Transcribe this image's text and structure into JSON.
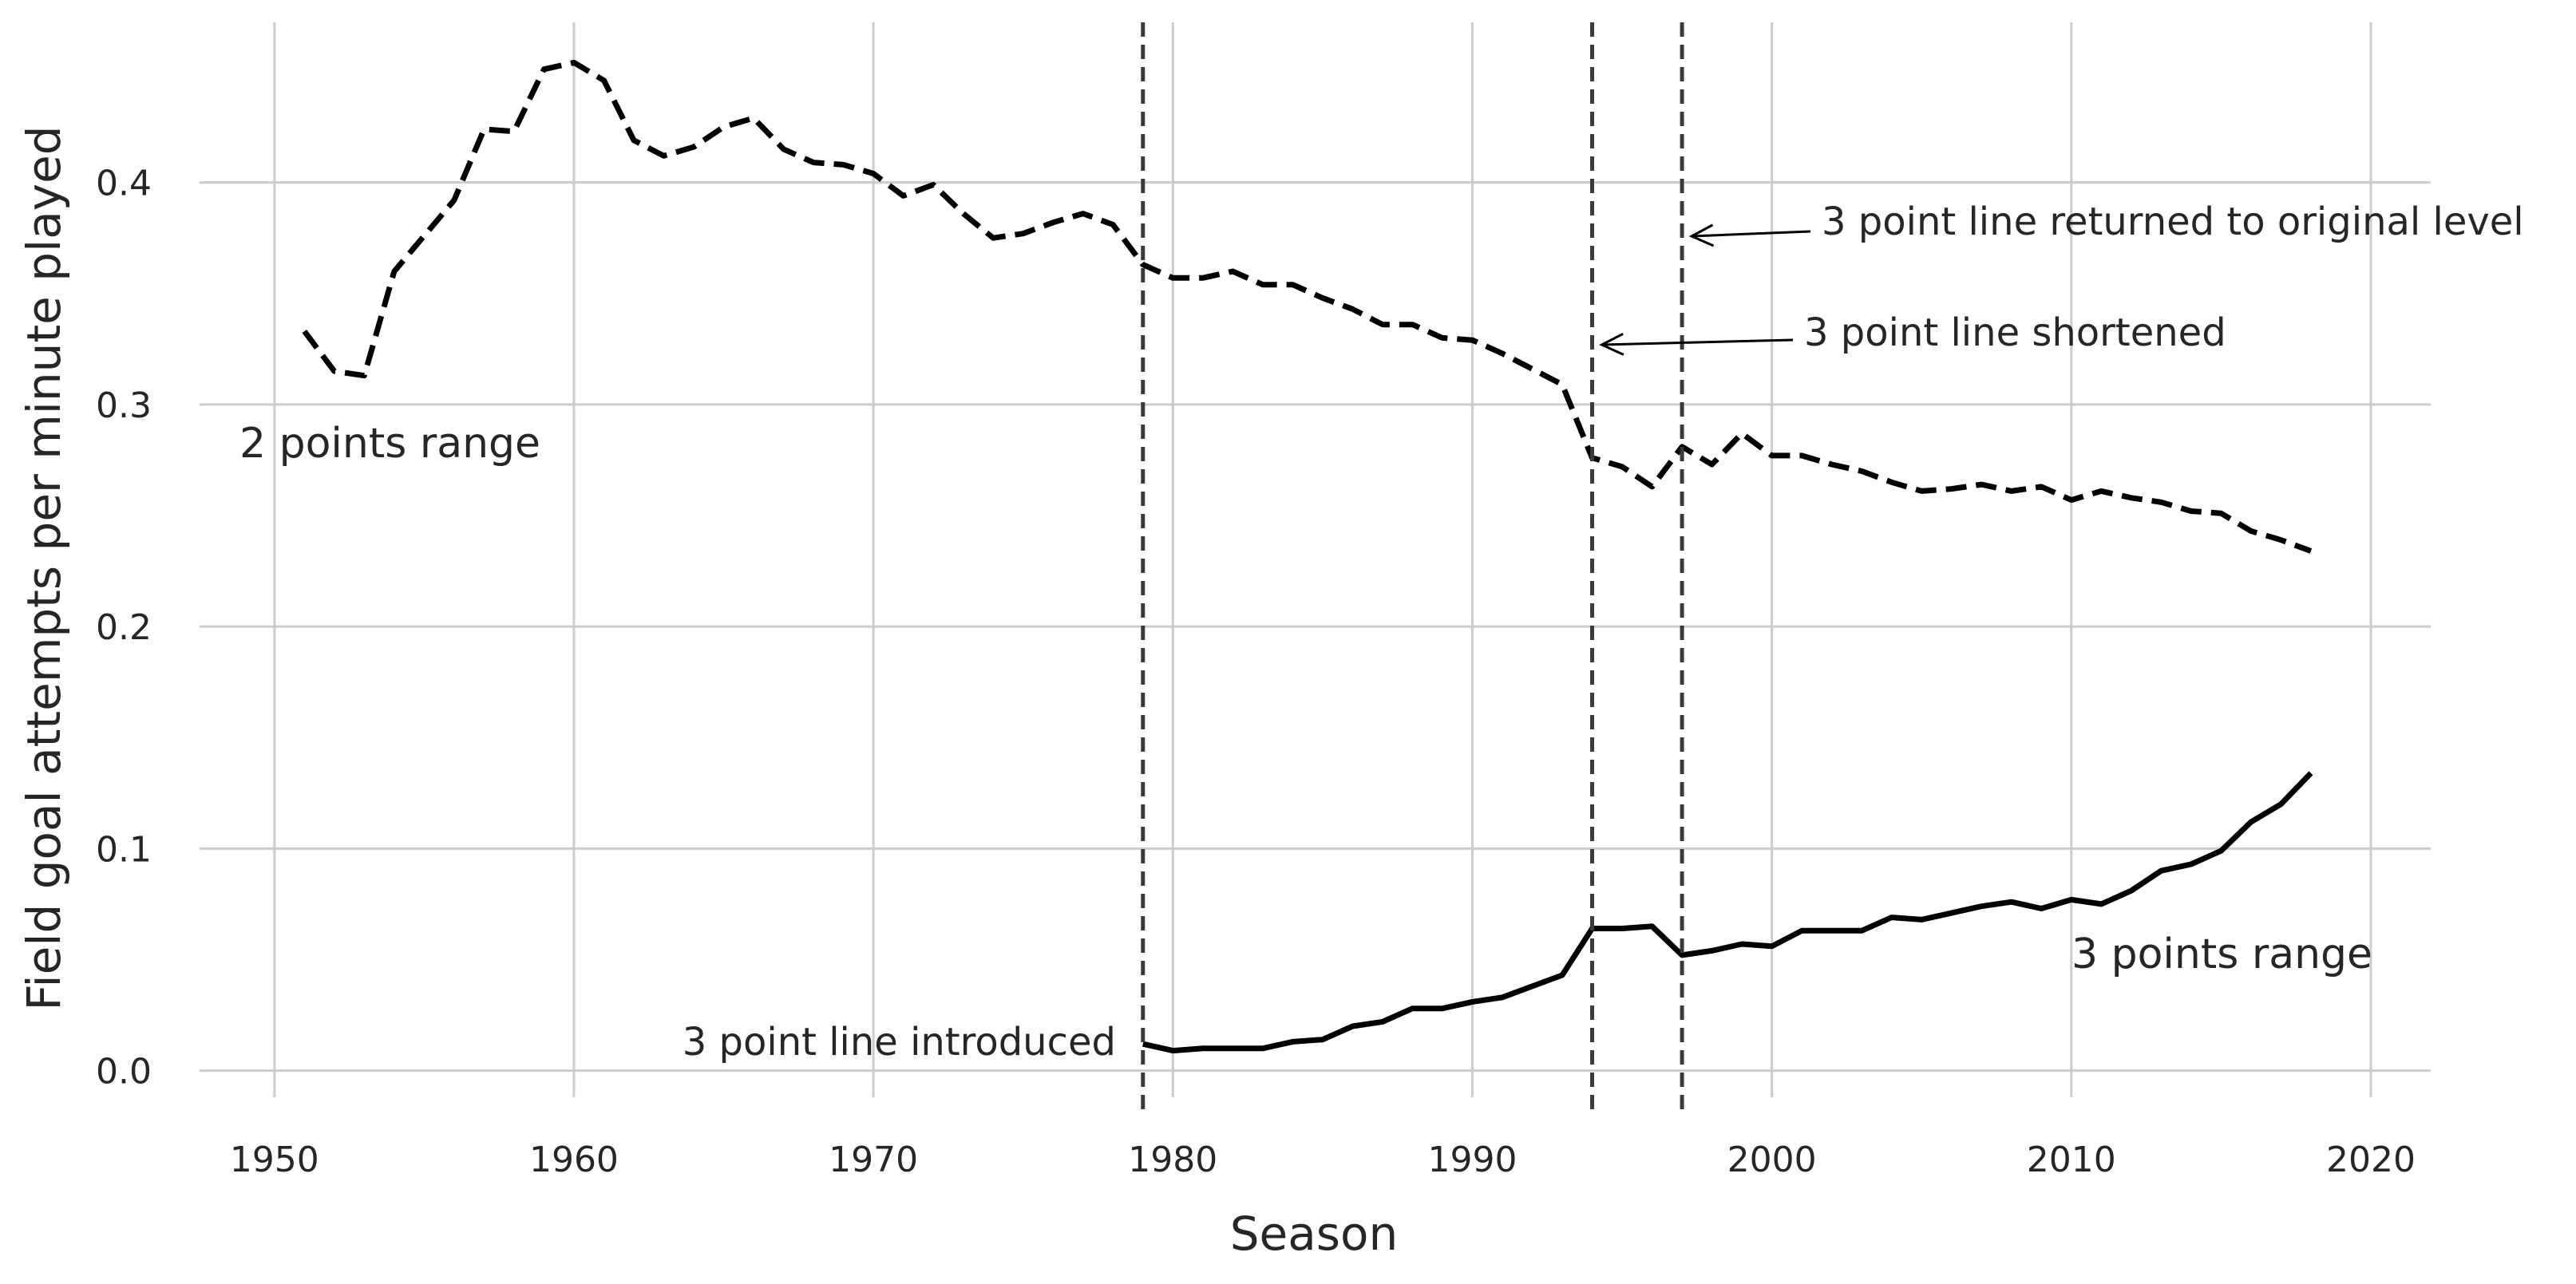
{
  "chart_data": {
    "type": "line",
    "title": "",
    "xlabel": "Season",
    "ylabel": "Field goal attempts per minute played",
    "xlim": [
      1947.5,
      2022
    ],
    "ylim": [
      -0.012,
      0.475
    ],
    "x_ticks": [
      1950,
      1960,
      1970,
      1980,
      1990,
      2000,
      2010,
      2020
    ],
    "y_ticks": [
      0.0,
      0.1,
      0.2,
      0.3,
      0.4
    ],
    "x_tick_labels": [
      "1950",
      "1960",
      "1970",
      "1980",
      "1990",
      "2000",
      "2010",
      "2020"
    ],
    "y_tick_labels": [
      "0.0",
      "0.1",
      "0.2",
      "0.3",
      "0.4"
    ],
    "grid": true,
    "series": [
      {
        "name": "2 points range",
        "style": "dashed",
        "color": "#000000",
        "x": [
          1951,
          1952,
          1953,
          1954,
          1955,
          1956,
          1957,
          1958,
          1959,
          1960,
          1961,
          1962,
          1963,
          1964,
          1965,
          1966,
          1967,
          1968,
          1969,
          1970,
          1971,
          1972,
          1973,
          1974,
          1975,
          1976,
          1977,
          1978,
          1979,
          1980,
          1981,
          1982,
          1983,
          1984,
          1985,
          1986,
          1987,
          1988,
          1989,
          1990,
          1991,
          1992,
          1993,
          1994,
          1995,
          1996,
          1997,
          1998,
          1999,
          2000,
          2001,
          2002,
          2003,
          2004,
          2005,
          2006,
          2007,
          2008,
          2009,
          2010,
          2011,
          2012,
          2013,
          2014,
          2015,
          2016,
          2017,
          2018
        ],
        "values": [
          0.333,
          0.315,
          0.313,
          0.36,
          0.376,
          0.392,
          0.424,
          0.423,
          0.451,
          0.454,
          0.446,
          0.419,
          0.412,
          0.416,
          0.425,
          0.429,
          0.415,
          0.409,
          0.408,
          0.404,
          0.394,
          0.399,
          0.386,
          0.375,
          0.377,
          0.382,
          0.386,
          0.381,
          0.363,
          0.357,
          0.357,
          0.36,
          0.354,
          0.354,
          0.348,
          0.343,
          0.336,
          0.336,
          0.33,
          0.329,
          0.323,
          0.316,
          0.309,
          0.276,
          0.272,
          0.263,
          0.281,
          0.273,
          0.287,
          0.277,
          0.277,
          0.273,
          0.27,
          0.265,
          0.261,
          0.262,
          0.264,
          0.261,
          0.263,
          0.257,
          0.261,
          0.258,
          0.256,
          0.252,
          0.251,
          0.243,
          0.239,
          0.234
        ]
      },
      {
        "name": "3 points range",
        "style": "solid",
        "color": "#000000",
        "x": [
          1979,
          1980,
          1981,
          1982,
          1983,
          1984,
          1985,
          1986,
          1987,
          1988,
          1989,
          1990,
          1991,
          1992,
          1993,
          1994,
          1995,
          1996,
          1997,
          1998,
          1999,
          2000,
          2001,
          2002,
          2003,
          2004,
          2005,
          2006,
          2007,
          2008,
          2009,
          2010,
          2011,
          2012,
          2013,
          2014,
          2015,
          2016,
          2017,
          2018
        ],
        "values": [
          0.012,
          0.009,
          0.01,
          0.01,
          0.01,
          0.013,
          0.014,
          0.02,
          0.022,
          0.028,
          0.028,
          0.031,
          0.033,
          0.038,
          0.043,
          0.064,
          0.064,
          0.065,
          0.052,
          0.054,
          0.057,
          0.056,
          0.063,
          0.063,
          0.063,
          0.069,
          0.068,
          0.071,
          0.074,
          0.076,
          0.073,
          0.077,
          0.075,
          0.081,
          0.09,
          0.093,
          0.099,
          0.112,
          0.12,
          0.134
        ]
      }
    ],
    "vlines": [
      {
        "x": 1979,
        "label": "3 point line introduced"
      },
      {
        "x": 1994,
        "label": "3 point line shortened"
      },
      {
        "x": 1997,
        "label": "3 point line returned to original level"
      }
    ],
    "series_labels": {
      "two_points": "2 points range",
      "three_points": "3 points range"
    },
    "colors": {
      "line": "#000000",
      "vline": "#3a3a3a",
      "grid": "#cccccc",
      "text": "#262626"
    }
  }
}
